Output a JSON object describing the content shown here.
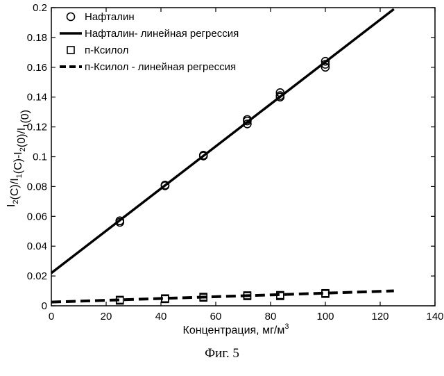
{
  "chart_data": {
    "type": "scatter",
    "caption": "Фиг. 5",
    "xlabel": "Концентрация, мг/м",
    "xlabel_sup": "3",
    "ylabel": "I₂(C)/I₁(C)-I₂(0)/I₁(0)",
    "xlim": [
      0,
      140
    ],
    "ylim": [
      0,
      0.2
    ],
    "xticks": [
      0,
      20,
      40,
      60,
      80,
      100,
      120,
      140
    ],
    "yticks": [
      0,
      0.02,
      0.04,
      0.06,
      0.08,
      0.1,
      0.12,
      0.14,
      0.16,
      0.18,
      0.2
    ],
    "legend_position": "top-left",
    "grid": false,
    "series": [
      {
        "name": "Нафталин",
        "marker": "circle",
        "points": [
          [
            25,
            0.056
          ],
          [
            25,
            0.057
          ],
          [
            41.5,
            0.081
          ],
          [
            41.5,
            0.0805
          ],
          [
            55.5,
            0.101
          ],
          [
            55.5,
            0.1005
          ],
          [
            71.5,
            0.122
          ],
          [
            71.5,
            0.124
          ],
          [
            71.5,
            0.125
          ],
          [
            83.5,
            0.14
          ],
          [
            83.5,
            0.141
          ],
          [
            83.5,
            0.143
          ],
          [
            100,
            0.16
          ],
          [
            100,
            0.162
          ],
          [
            100,
            0.164
          ]
        ]
      },
      {
        "name": "Нафталин- линейная регрессия",
        "line_style": "solid",
        "line": [
          [
            0,
            0.022
          ],
          [
            125,
            0.199
          ]
        ]
      },
      {
        "name": "п-Ксилол",
        "marker": "square",
        "points": [
          [
            25,
            0.0035
          ],
          [
            25,
            0.004
          ],
          [
            41.5,
            0.005
          ],
          [
            41.5,
            0.0045
          ],
          [
            55.5,
            0.0055
          ],
          [
            55.5,
            0.006
          ],
          [
            71.5,
            0.0065
          ],
          [
            71.5,
            0.007
          ],
          [
            83.5,
            0.0072
          ],
          [
            83.5,
            0.0065
          ],
          [
            100,
            0.008
          ],
          [
            100,
            0.0085
          ]
        ]
      },
      {
        "name": "п-Ксилол - линейная регрессия",
        "line_style": "dashed",
        "line": [
          [
            0,
            0.0025
          ],
          [
            125,
            0.01
          ]
        ]
      }
    ]
  }
}
